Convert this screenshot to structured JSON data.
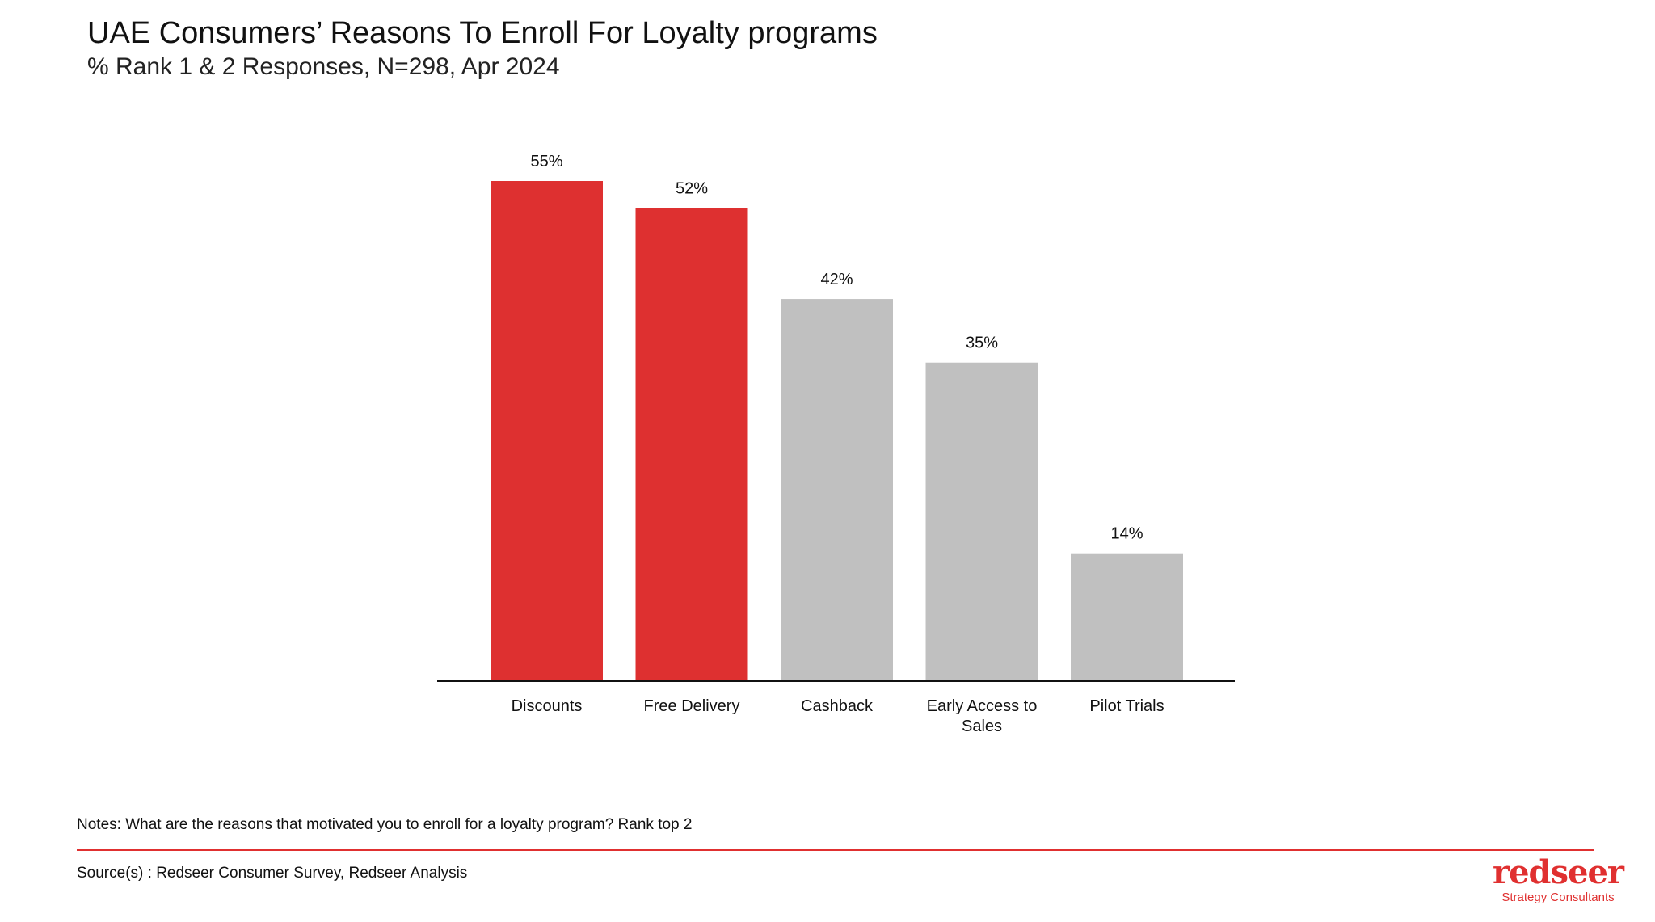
{
  "title": "UAE Consumers’ Reasons To Enroll For Loyalty programs",
  "subtitle": "% Rank 1 & 2 Responses, N=298, Apr 2024",
  "chart_data": {
    "type": "bar",
    "categories": [
      "Discounts",
      "Free Delivery",
      "Cashback",
      "Early Access to Sales",
      "Pilot Trials"
    ],
    "category_lines": [
      [
        "Discounts"
      ],
      [
        "Free Delivery"
      ],
      [
        "Cashback"
      ],
      [
        "Early Access to",
        "Sales"
      ],
      [
        "Pilot Trials"
      ]
    ],
    "values": [
      55,
      52,
      42,
      35,
      14
    ],
    "data_labels": [
      "55%",
      "52%",
      "42%",
      "35%",
      "14%"
    ],
    "colors": [
      "#de3030",
      "#de3030",
      "#c0c0c0",
      "#c0c0c0",
      "#c0c0c0"
    ],
    "ylim": [
      0,
      55
    ],
    "grid": false,
    "xlabel": "",
    "ylabel": ""
  },
  "notes": "Notes: What are the reasons that motivated you to enroll for a loyalty program?  Rank top 2",
  "source": "Source(s) : Redseer Consumer Survey, Redseer Analysis",
  "logo": {
    "word": "redseer",
    "tagline": "Strategy Consultants",
    "color": "#e03030"
  }
}
